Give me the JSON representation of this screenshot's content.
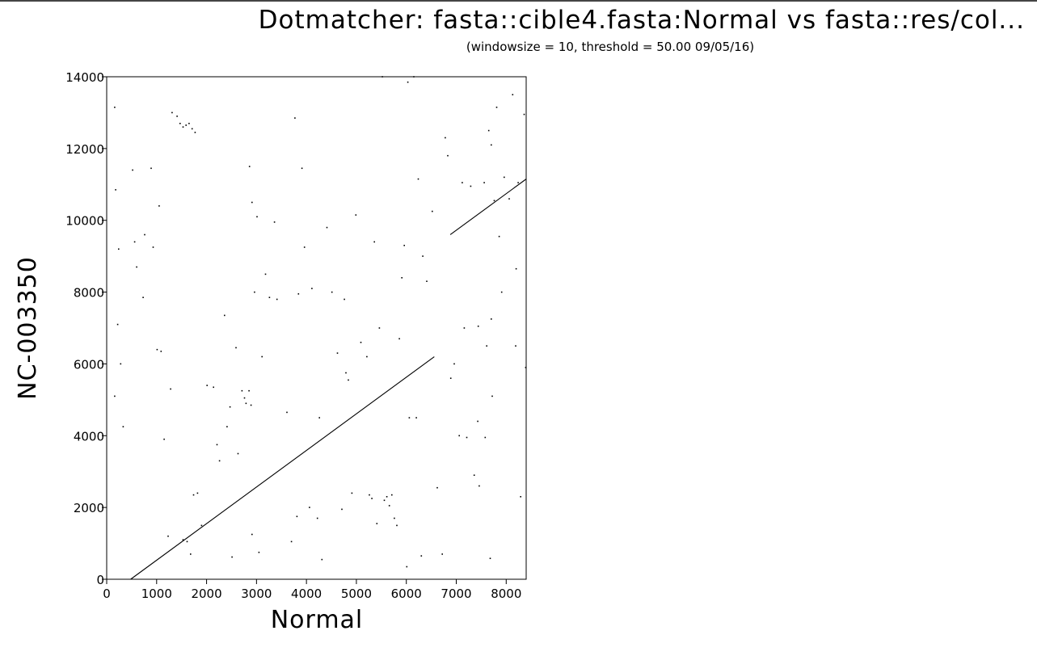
{
  "chart_data": {
    "type": "scatter",
    "title": "Dotmatcher: fasta::cible4.fasta:Normal vs fasta::res/col...",
    "subtitle": "(windowsize = 10, threshold = 50.00  09/05/16)",
    "xlabel": "Normal",
    "ylabel": "NC-003350",
    "xlim": [
      0,
      8400
    ],
    "ylim": [
      0,
      14000
    ],
    "x_ticks": [
      0,
      1000,
      2000,
      3000,
      4000,
      5000,
      6000,
      7000,
      8000
    ],
    "y_ticks": [
      0,
      2000,
      4000,
      6000,
      8000,
      10000,
      12000,
      14000
    ],
    "x_tick_labels": [
      "0",
      "1000",
      "2000",
      "3000",
      "4000",
      "5000",
      "6000",
      "7000",
      "8000"
    ],
    "y_tick_labels": [
      "0",
      "2000",
      "4000",
      "6000",
      "8000",
      "10000",
      "12000",
      "14000"
    ],
    "grid": false,
    "legend": "none",
    "colors": {
      "ink": "#000000",
      "background": "#ffffff"
    },
    "diagonals": [
      {
        "x": [
          480,
          6560
        ],
        "y": [
          0,
          6200
        ]
      },
      {
        "x": [
          6880,
          8400
        ],
        "y": [
          9600,
          11150
        ]
      }
    ],
    "points": [
      [
        160,
        13150
      ],
      [
        180,
        10850
      ],
      [
        240,
        9200
      ],
      [
        220,
        7100
      ],
      [
        280,
        6000
      ],
      [
        160,
        5100
      ],
      [
        330,
        4250
      ],
      [
        520,
        11400
      ],
      [
        560,
        9400
      ],
      [
        600,
        8700
      ],
      [
        730,
        7850
      ],
      [
        760,
        9600
      ],
      [
        890,
        11450
      ],
      [
        930,
        9250
      ],
      [
        1010,
        6400
      ],
      [
        1050,
        10400
      ],
      [
        1090,
        6350
      ],
      [
        1150,
        3900
      ],
      [
        1230,
        1200
      ],
      [
        1280,
        5300
      ],
      [
        1310,
        13000
      ],
      [
        1410,
        12900
      ],
      [
        1470,
        12700
      ],
      [
        1530,
        12600
      ],
      [
        1590,
        12650
      ],
      [
        1650,
        12700
      ],
      [
        1710,
        12550
      ],
      [
        1770,
        12450
      ],
      [
        1610,
        1050
      ],
      [
        1530,
        1100
      ],
      [
        1680,
        700
      ],
      [
        1740,
        2350
      ],
      [
        1820,
        2400
      ],
      [
        1900,
        1500
      ],
      [
        2010,
        5400
      ],
      [
        2140,
        5350
      ],
      [
        2210,
        3750
      ],
      [
        2260,
        3300
      ],
      [
        2360,
        7350
      ],
      [
        2410,
        4250
      ],
      [
        2470,
        4800
      ],
      [
        2510,
        620
      ],
      [
        2590,
        6450
      ],
      [
        2630,
        3500
      ],
      [
        2710,
        5250
      ],
      [
        2760,
        5050
      ],
      [
        2790,
        4900
      ],
      [
        2850,
        5250
      ],
      [
        2890,
        4850
      ],
      [
        2860,
        11500
      ],
      [
        2910,
        10500
      ],
      [
        2960,
        8000
      ],
      [
        3010,
        10100
      ],
      [
        2910,
        1250
      ],
      [
        3050,
        750
      ],
      [
        3110,
        6200
      ],
      [
        3180,
        8500
      ],
      [
        3260,
        7850
      ],
      [
        3360,
        9950
      ],
      [
        3410,
        7800
      ],
      [
        3610,
        4650
      ],
      [
        3700,
        1050
      ],
      [
        3770,
        12850
      ],
      [
        3810,
        1750
      ],
      [
        3840,
        7950
      ],
      [
        3910,
        11450
      ],
      [
        3960,
        9250
      ],
      [
        4060,
        2000
      ],
      [
        4110,
        8100
      ],
      [
        4220,
        1700
      ],
      [
        4260,
        4500
      ],
      [
        4310,
        550
      ],
      [
        4410,
        9800
      ],
      [
        4510,
        8000
      ],
      [
        4620,
        6300
      ],
      [
        4710,
        1950
      ],
      [
        4760,
        7800
      ],
      [
        4790,
        5750
      ],
      [
        4840,
        5550
      ],
      [
        4910,
        2400
      ],
      [
        4990,
        10150
      ],
      [
        5090,
        6600
      ],
      [
        5210,
        6200
      ],
      [
        5260,
        2350
      ],
      [
        5310,
        2250
      ],
      [
        5360,
        9400
      ],
      [
        5410,
        1550
      ],
      [
        5460,
        7000
      ],
      [
        5520,
        14000
      ],
      [
        5560,
        2200
      ],
      [
        5610,
        2300
      ],
      [
        5660,
        2050
      ],
      [
        5710,
        2350
      ],
      [
        5760,
        1700
      ],
      [
        5810,
        1500
      ],
      [
        5860,
        6700
      ],
      [
        5910,
        8400
      ],
      [
        5960,
        9300
      ],
      [
        6010,
        350
      ],
      [
        6030,
        13850
      ],
      [
        6060,
        4500
      ],
      [
        6150,
        14000
      ],
      [
        6200,
        4500
      ],
      [
        6240,
        11150
      ],
      [
        6300,
        650
      ],
      [
        6330,
        9000
      ],
      [
        6410,
        8300
      ],
      [
        6520,
        10250
      ],
      [
        6620,
        2550
      ],
      [
        6720,
        700
      ],
      [
        6780,
        12300
      ],
      [
        6830,
        11800
      ],
      [
        6890,
        5600
      ],
      [
        6960,
        6000
      ],
      [
        7060,
        4000
      ],
      [
        7120,
        11050
      ],
      [
        7160,
        7000
      ],
      [
        7210,
        3950
      ],
      [
        7290,
        10950
      ],
      [
        7360,
        2900
      ],
      [
        7430,
        4400
      ],
      [
        7460,
        2600
      ],
      [
        7560,
        11050
      ],
      [
        7610,
        6500
      ],
      [
        7650,
        12500
      ],
      [
        7700,
        12100
      ],
      [
        7760,
        10550
      ],
      [
        7810,
        13150
      ],
      [
        7860,
        9550
      ],
      [
        7910,
        8000
      ],
      [
        7960,
        11200
      ],
      [
        8060,
        10600
      ],
      [
        8130,
        13500
      ],
      [
        8190,
        6500
      ],
      [
        8240,
        11050
      ],
      [
        8290,
        2300
      ],
      [
        8360,
        12950
      ],
      [
        8390,
        5900
      ],
      [
        7680,
        580
      ],
      [
        7720,
        5100
      ],
      [
        7580,
        3950
      ],
      [
        8200,
        8650
      ],
      [
        7700,
        7250
      ],
      [
        7440,
        7050
      ]
    ]
  }
}
